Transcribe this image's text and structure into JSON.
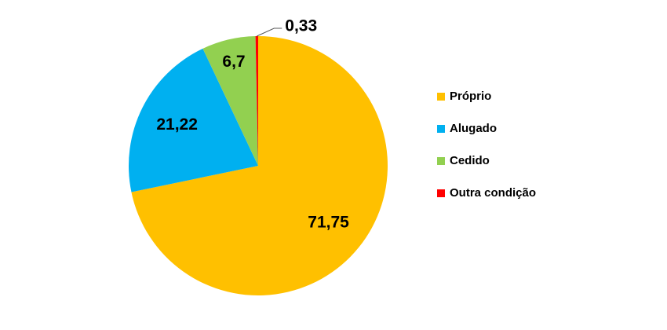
{
  "chart_data": {
    "type": "pie",
    "categories": [
      "Próprio",
      "Alugado",
      "Cedido",
      "Outra condição"
    ],
    "values": [
      71.75,
      21.22,
      6.7,
      0.33
    ],
    "value_labels": [
      "71,75",
      "21,22",
      "6,7",
      "0,33"
    ],
    "colors": [
      "#FFC000",
      "#00B0F0",
      "#92D050",
      "#FF0000"
    ]
  }
}
